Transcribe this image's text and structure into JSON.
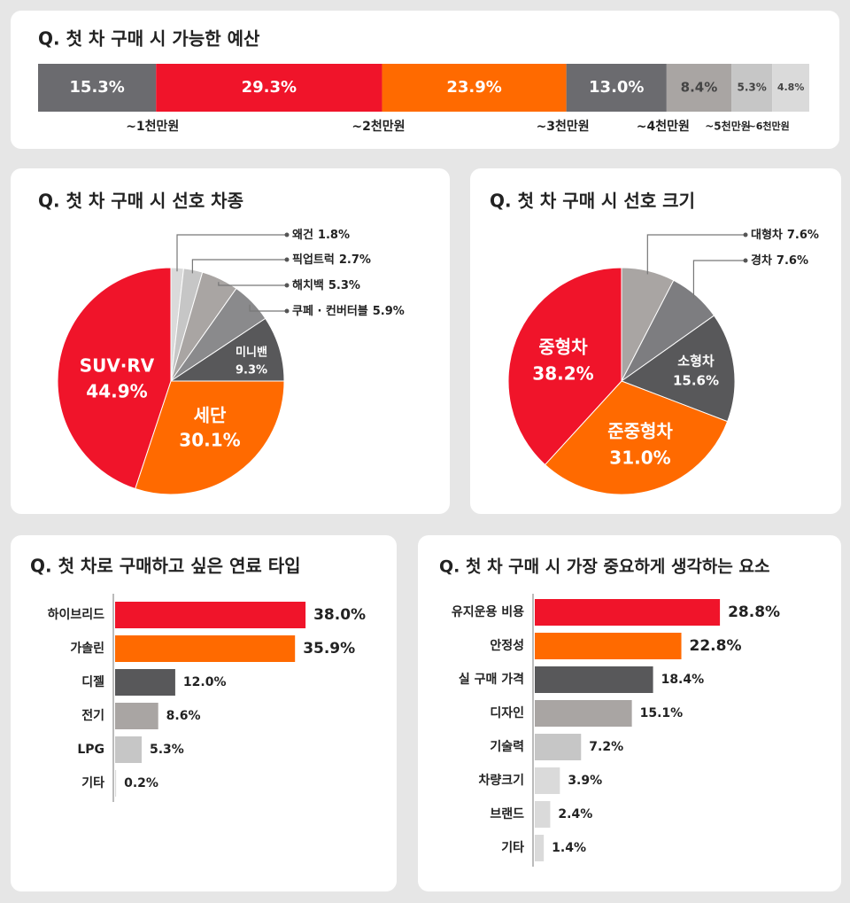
{
  "chart_data": [
    {
      "type": "stacked_bar",
      "title": "Q. 첫 차 구매 시 가능한 예산",
      "categories": [
        "~1천만원",
        "~2천만원",
        "~3천만원",
        "~4천만원",
        "~5천만원",
        "~6천만원",
        null
      ],
      "values": [
        15.3,
        29.3,
        23.9,
        13.0,
        8.4,
        5.3,
        4.8
      ],
      "value_labels": [
        "15.3%",
        "29.3%",
        "23.9%",
        "13.0%",
        "8.4%",
        "5.3%",
        "4.8%"
      ],
      "colors": [
        "#6b6b6f",
        "#f0142a",
        "#ff6a00",
        "#6b6b6f",
        "#a9a5a3",
        "#c6c6c6",
        "#dadada"
      ]
    },
    {
      "type": "pie",
      "title": "Q. 첫 차 구매 시 선호 차종",
      "categories": [
        "왜건",
        "픽업트럭",
        "해치백",
        "쿠페 · 컨버터블",
        "미니밴",
        "세단",
        "SUV·RV"
      ],
      "values": [
        1.8,
        2.7,
        5.3,
        5.9,
        9.3,
        30.1,
        44.9
      ],
      "value_labels": [
        "1.8%",
        "2.7%",
        "5.3%",
        "5.9%",
        "9.3%",
        "30.1%",
        "44.9%"
      ],
      "colors": [
        "#dadada",
        "#c6c6c6",
        "#a9a5a3",
        "#8a8a8c",
        "#58585a",
        "#ff6a00",
        "#f0142a"
      ]
    },
    {
      "type": "pie",
      "title": "Q. 첫 차 구매 시 선호 크기",
      "categories": [
        "대형차",
        "경차",
        "소형차",
        "준중형차",
        "중형차"
      ],
      "values": [
        7.6,
        7.6,
        15.6,
        31.0,
        38.2
      ],
      "value_labels": [
        "7.6%",
        "7.6%",
        "15.6%",
        "31.0%",
        "38.2%"
      ],
      "colors": [
        "#a9a5a3",
        "#7d7d80",
        "#58585a",
        "#ff6a00",
        "#f0142a"
      ]
    },
    {
      "type": "bar",
      "title": "Q. 첫 차로 구매하고 싶은 연료 타입",
      "categories": [
        "하이브리드",
        "가솔린",
        "디젤",
        "전기",
        "LPG",
        "기타"
      ],
      "values": [
        38.0,
        35.9,
        12.0,
        8.6,
        5.3,
        0.2
      ],
      "value_labels": [
        "38.0%",
        "35.9%",
        "12.0%",
        "8.6%",
        "5.3%",
        "0.2%"
      ],
      "colors": [
        "#f0142a",
        "#ff6a00",
        "#58585a",
        "#a9a5a3",
        "#c6c6c6",
        "#dadada"
      ]
    },
    {
      "type": "bar",
      "title": "Q. 첫 차 구매 시 가장 중요하게 생각하는 요소",
      "categories": [
        "유지운용 비용",
        "안정성",
        "실 구매 가격",
        "디자인",
        "기술력",
        "차량크기",
        "브랜드",
        "기타"
      ],
      "values": [
        28.8,
        22.8,
        18.4,
        15.1,
        7.2,
        3.9,
        2.4,
        1.4
      ],
      "value_labels": [
        "28.8%",
        "22.8%",
        "18.4%",
        "15.1%",
        "7.2%",
        "3.9%",
        "2.4%",
        "1.4%"
      ],
      "colors": [
        "#f0142a",
        "#ff6a00",
        "#58585a",
        "#a9a5a3",
        "#c6c6c6",
        "#dadada",
        "#dadada",
        "#dadada"
      ]
    }
  ]
}
